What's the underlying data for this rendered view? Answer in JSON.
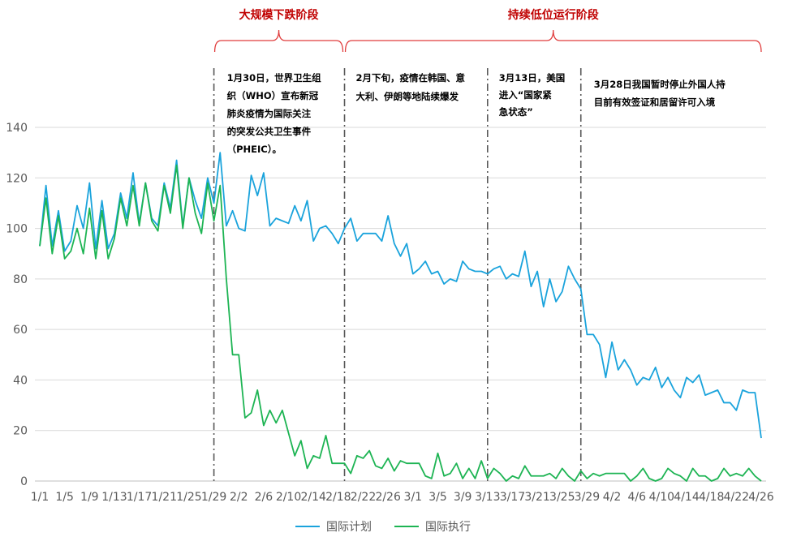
{
  "chart_data": {
    "type": "line",
    "title": "",
    "xlabel": "",
    "ylabel": "",
    "ylim": [
      0,
      140
    ],
    "yticks": [
      0,
      20,
      40,
      60,
      80,
      100,
      120,
      140
    ],
    "grid": true,
    "legend_position": "bottom",
    "x": [
      "1/1",
      "1/2",
      "1/3",
      "1/4",
      "1/5",
      "1/6",
      "1/7",
      "1/8",
      "1/9",
      "1/10",
      "1/11",
      "1/12",
      "1/13",
      "1/14",
      "1/15",
      "1/16",
      "1/17",
      "1/18",
      "1/19",
      "1/20",
      "1/21",
      "1/22",
      "1/23",
      "1/24",
      "1/25",
      "1/26",
      "1/27",
      "1/28",
      "1/29",
      "1/30",
      "1/31",
      "2/1",
      "2/2",
      "2/3",
      "2/4",
      "2/5",
      "2/6",
      "2/7",
      "2/8",
      "2/9",
      "2/10",
      "2/11",
      "2/12",
      "2/13",
      "2/14",
      "2/15",
      "2/16",
      "2/17",
      "2/18",
      "2/19",
      "2/20",
      "2/21",
      "2/22",
      "2/23",
      "2/24",
      "2/25",
      "2/26",
      "2/27",
      "2/28",
      "2/29",
      "3/1",
      "3/2",
      "3/3",
      "3/4",
      "3/5",
      "3/6",
      "3/7",
      "3/8",
      "3/9",
      "3/10",
      "3/11",
      "3/12",
      "3/13",
      "3/14",
      "3/15",
      "3/16",
      "3/17",
      "3/18",
      "3/19",
      "3/20",
      "3/21",
      "3/22",
      "3/23",
      "3/24",
      "3/25",
      "3/26",
      "3/27",
      "3/28",
      "3/29",
      "3/30",
      "3/31",
      "4/1",
      "4/2",
      "4/3",
      "4/4",
      "4/5",
      "4/6",
      "4/7",
      "4/8",
      "4/9",
      "4/10",
      "4/11",
      "4/12",
      "4/13",
      "4/14",
      "4/15",
      "4/16",
      "4/17",
      "4/18",
      "4/19",
      "4/20",
      "4/21",
      "4/22",
      "4/23",
      "4/24",
      "4/25",
      "4/26"
    ],
    "x_tick_labels": [
      {
        "at": "1/1",
        "label": "1/1"
      },
      {
        "at": "1/5",
        "label": "1/5"
      },
      {
        "at": "1/9",
        "label": "1/9"
      },
      {
        "at": "1/13",
        "label": "1/13"
      },
      {
        "at": "1/17",
        "label": "1/17"
      },
      {
        "at": "1/21",
        "label": "1/21"
      },
      {
        "at": "1/25",
        "label": "1/25"
      },
      {
        "at": "1/29",
        "label": "1/29"
      },
      {
        "at": "2/2",
        "label": "2/2"
      },
      {
        "at": "2/6",
        "label": "2/6"
      },
      {
        "at": "2/10",
        "label": "2/10"
      },
      {
        "at": "2/14",
        "label": "2/14"
      },
      {
        "at": "2/18",
        "label": "2/18"
      },
      {
        "at": "2/22",
        "label": "2/22"
      },
      {
        "at": "2/26",
        "label": "2/26"
      },
      {
        "at": "3/1",
        "label": "3/1"
      },
      {
        "at": "3/5",
        "label": "3/5"
      },
      {
        "at": "3/9",
        "label": "3/9"
      },
      {
        "at": "3/13",
        "label": "3/13"
      },
      {
        "at": "3/17",
        "label": "3/17"
      },
      {
        "at": "3/21",
        "label": "3/21"
      },
      {
        "at": "3/25",
        "label": "3/25"
      },
      {
        "at": "3/29",
        "label": "3/29"
      },
      {
        "at": "4/2",
        "label": "4/2"
      },
      {
        "at": "4/6",
        "label": "4/6"
      },
      {
        "at": "4/10",
        "label": "4/10"
      },
      {
        "at": "4/14",
        "label": "4/14"
      },
      {
        "at": "4/18",
        "label": "4/18"
      },
      {
        "at": "4/22",
        "label": "4/22"
      },
      {
        "at": "4/26",
        "label": "4/26"
      }
    ],
    "series": [
      {
        "name": "国际计划",
        "color": "#1aa3dc",
        "values": [
          93,
          117,
          93,
          107,
          91,
          95,
          109,
          100,
          118,
          92,
          111,
          92,
          98,
          114,
          104,
          122,
          102,
          118,
          104,
          101,
          118,
          108,
          127,
          101,
          120,
          111,
          104,
          120,
          110,
          130,
          101,
          107,
          100,
          99,
          121,
          113,
          122,
          101,
          104,
          103,
          102,
          109,
          103,
          111,
          95,
          100,
          101,
          98,
          94,
          100,
          104,
          95,
          98,
          98,
          98,
          95,
          105,
          94,
          89,
          94,
          82,
          84,
          87,
          82,
          83,
          78,
          80,
          79,
          87,
          84,
          83,
          83,
          82,
          84,
          85,
          80,
          82,
          81,
          91,
          77,
          83,
          69,
          80,
          71,
          75,
          85,
          80,
          76,
          58,
          58,
          54,
          41,
          55,
          44,
          48,
          44,
          38,
          41,
          40,
          45,
          37,
          41,
          36,
          33,
          41,
          39,
          42,
          34,
          35,
          36,
          31,
          31,
          28,
          36,
          35,
          35,
          17
        ]
      },
      {
        "name": "国际执行",
        "color": "#1db453",
        "values": [
          93,
          112,
          90,
          105,
          88,
          91,
          100,
          90,
          108,
          88,
          107,
          88,
          96,
          112,
          101,
          117,
          101,
          118,
          103,
          99,
          117,
          106,
          125,
          100,
          120,
          106,
          98,
          118,
          103,
          117,
          80,
          50,
          50,
          25,
          27,
          36,
          22,
          28,
          23,
          28,
          19,
          10,
          16,
          5,
          10,
          9,
          18,
          7,
          7,
          7,
          3,
          10,
          9,
          12,
          6,
          5,
          9,
          4,
          8,
          7,
          7,
          7,
          2,
          1,
          11,
          2,
          3,
          7,
          1,
          5,
          1,
          8,
          1,
          5,
          3,
          0,
          2,
          1,
          6,
          2,
          2,
          2,
          3,
          1,
          5,
          2,
          0,
          4,
          1,
          3,
          2,
          3,
          3,
          3,
          3,
          0,
          2,
          5,
          1,
          0,
          1,
          5,
          3,
          2,
          0,
          5,
          2,
          2,
          0,
          1,
          5,
          2,
          3,
          2,
          5,
          2,
          0
        ]
      }
    ],
    "markers": [
      {
        "at": "1/29",
        "style": "dash-dot"
      },
      {
        "at": "2/19",
        "style": "dash-dot"
      },
      {
        "at": "3/13",
        "style": "dash-dot"
      },
      {
        "at": "3/28",
        "style": "dash-dot"
      }
    ],
    "phases": [
      {
        "label": "大规模下跌阶段",
        "from": "1/29",
        "to": "2/19"
      },
      {
        "label": "持续低位运行阶段",
        "from": "2/19",
        "to": "4/26"
      }
    ],
    "annotations": [
      {
        "lines": [
          "1月30日，世界卫生组",
          "织（WHO）宣布新冠",
          "肺炎疫情为国际关注",
          "的突发公共卫生事件",
          "（PHEIC）。"
        ]
      },
      {
        "lines": [
          "2月下旬，疫情在韩国、意",
          "大利、伊朗等地陆续爆发"
        ]
      },
      {
        "lines": [
          "3月13日，美国",
          "进入“国家紧",
          "急状态”"
        ]
      },
      {
        "lines": [
          "3月28日我国暂时停止外国人持",
          "目前有效签证和居留许可入境"
        ]
      }
    ]
  }
}
